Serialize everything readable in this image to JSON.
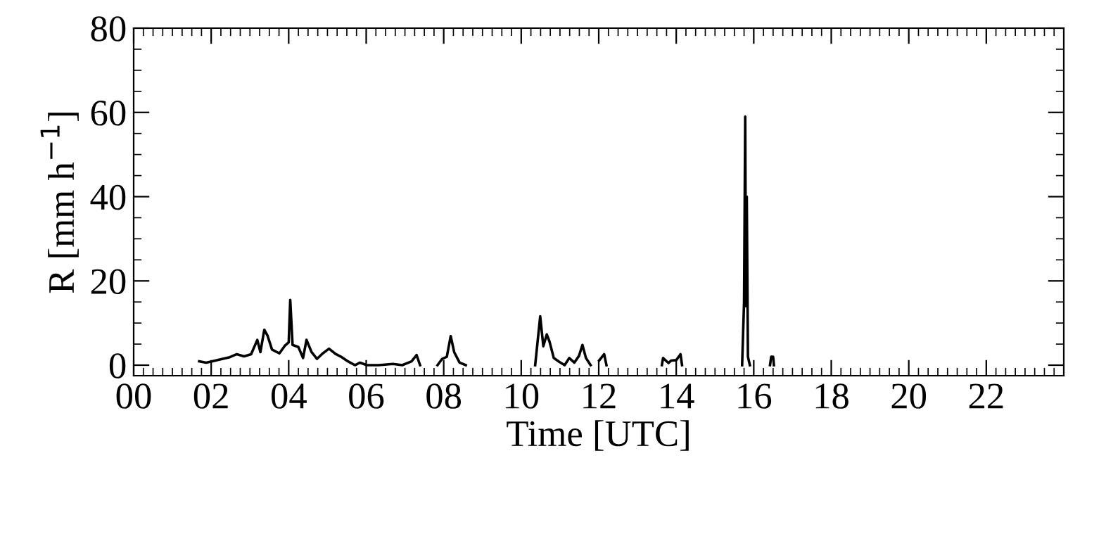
{
  "chart_data": {
    "type": "line",
    "xlabel": "Time [UTC]",
    "ylabel": "R [mm h$^{−1}$]",
    "xlim": [
      0,
      24
    ],
    "ylim": [
      -2.5,
      80
    ],
    "xticks": [
      {
        "value": 0,
        "label": "00"
      },
      {
        "value": 2,
        "label": "02"
      },
      {
        "value": 4,
        "label": "04"
      },
      {
        "value": 6,
        "label": "06"
      },
      {
        "value": 8,
        "label": "08"
      },
      {
        "value": 10,
        "label": "10"
      },
      {
        "value": 12,
        "label": "12"
      },
      {
        "value": 14,
        "label": "14"
      },
      {
        "value": 16,
        "label": "16"
      },
      {
        "value": 18,
        "label": "18"
      },
      {
        "value": 20,
        "label": "20"
      },
      {
        "value": 22,
        "label": "22"
      }
    ],
    "yticks": [
      0,
      20,
      40,
      60,
      80
    ],
    "grid": false,
    "marker": "none",
    "line_style": "solid",
    "series": [
      {
        "color": "#000000",
        "x": [
          1.69,
          1.87,
          2.11,
          2.3,
          2.48,
          2.66,
          2.85,
          3.03,
          3.19,
          3.27,
          3.37,
          3.45,
          3.57,
          3.76,
          3.9,
          4.0,
          4.04,
          4.1,
          4.25,
          4.37,
          4.46,
          4.59,
          4.73,
          4.88,
          5.04,
          5.22,
          5.37,
          5.53,
          5.71,
          5.84,
          6.02,
          6.32,
          6.69,
          6.93,
          7.17,
          7.3,
          7.39,
          7.6,
          7.84,
          7.96,
          8.08,
          8.18,
          8.27,
          8.41,
          8.57,
          9.5,
          10.36,
          10.49,
          10.57,
          10.66,
          10.73,
          10.84,
          10.98,
          11.12,
          11.24,
          11.37,
          11.49,
          11.58,
          11.67,
          11.79,
          11.9,
          12.01,
          12.14,
          12.2,
          13.0,
          13.63,
          13.66,
          13.8,
          13.87,
          14.0,
          14.11,
          14.15,
          15.0,
          15.7,
          15.75,
          15.78,
          15.8,
          15.82,
          15.85,
          15.9,
          16.2,
          16.42,
          16.45,
          16.5,
          16.52
        ],
        "values": [
          0.9,
          0.6,
          1.1,
          1.5,
          1.9,
          2.6,
          2.1,
          2.6,
          6.0,
          3.1,
          8.4,
          7.1,
          3.7,
          2.8,
          4.6,
          5.4,
          15.5,
          4.8,
          4.3,
          1.7,
          6.0,
          3.1,
          1.5,
          2.8,
          3.9,
          2.6,
          1.9,
          0.9,
          0,
          0.6,
          0,
          0,
          0.3,
          0,
          0.9,
          2.4,
          0,
          null,
          0,
          1.5,
          2.0,
          6.9,
          3.1,
          0.6,
          0,
          null,
          0,
          11.6,
          4.5,
          7.3,
          5.6,
          1.7,
          0.8,
          0,
          1.7,
          0.6,
          2.2,
          4.8,
          1.7,
          0,
          null,
          1.1,
          2.6,
          0,
          null,
          0,
          1.7,
          0.5,
          1.1,
          1.2,
          2.6,
          0,
          null,
          0,
          15,
          59,
          14,
          40,
          2,
          0,
          null,
          0,
          2,
          2,
          0
        ]
      }
    ]
  }
}
